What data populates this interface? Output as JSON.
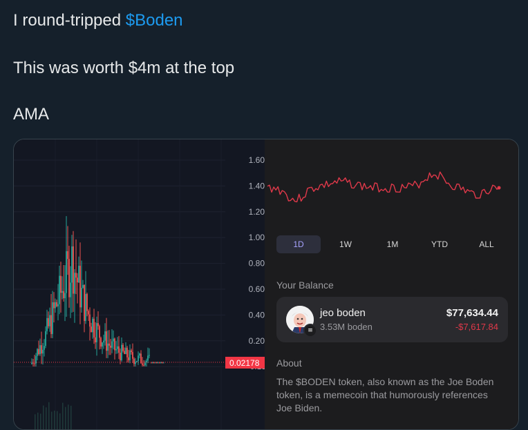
{
  "tweet": {
    "line1_prefix": "I round-tripped ",
    "line1_link": "$Boden",
    "line2": "This was worth $4m at the top",
    "line3": "AMA"
  },
  "price_chart": {
    "axis_labels": [
      "1.6000",
      "1.4000",
      "1.2000",
      "1.0000",
      "0.8000",
      "0.6000",
      "0.4000",
      "0.2000",
      "-0.1999"
    ],
    "current_price_label": "0.02178",
    "current_price_color": "#f23645",
    "up_color": "#26a69a",
    "down_color": "#ef5350"
  },
  "wallet": {
    "sparkline_color": "#e0394a",
    "range_tabs": [
      "1D",
      "1W",
      "1M",
      "YTD",
      "ALL"
    ],
    "active_tab": "1D",
    "active_tab_color": "#a8a3ff",
    "balance_title": "Your Balance",
    "token": {
      "name": "jeo boden",
      "amount": "3.53M boden",
      "value": "$77,634.44",
      "change": "-$7,617.84"
    },
    "about_title": "About",
    "about_text": "The $BODEN token, also known as the Joe Boden token, is a memecoin that humorously references Joe Biden."
  },
  "icons": {
    "avatar": "cartoon-avatar",
    "chain_badge": "solana-badge-icon",
    "chain_badge_glyph": "≡"
  }
}
